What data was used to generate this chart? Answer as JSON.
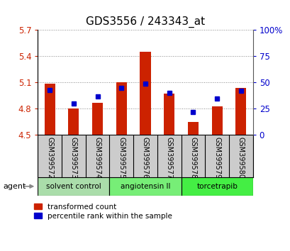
{
  "title": "GDS3556 / 243343_at",
  "samples": [
    "GSM399572",
    "GSM399573",
    "GSM399574",
    "GSM399575",
    "GSM399576",
    "GSM399577",
    "GSM399578",
    "GSM399579",
    "GSM399580"
  ],
  "red_values": [
    5.09,
    4.8,
    4.87,
    5.1,
    5.45,
    4.97,
    4.65,
    4.83,
    5.04
  ],
  "blue_values_pct": [
    43,
    30,
    37,
    45,
    49,
    40,
    22,
    35,
    42
  ],
  "y_min": 4.5,
  "y_max": 5.7,
  "y_ticks_red": [
    4.5,
    4.8,
    5.1,
    5.4,
    5.7
  ],
  "y_ticks_blue": [
    0,
    25,
    50,
    75,
    100
  ],
  "bar_color": "#cc2200",
  "dot_color": "#0000cc",
  "groups": [
    {
      "label": "solvent control",
      "indices": [
        0,
        1,
        2
      ],
      "color": "#aaddaa"
    },
    {
      "label": "angiotensin II",
      "indices": [
        3,
        4,
        5
      ],
      "color": "#77ee77"
    },
    {
      "label": "torcetrapib",
      "indices": [
        6,
        7,
        8
      ],
      "color": "#44ee44"
    }
  ],
  "legend_red": "transformed count",
  "legend_blue": "percentile rank within the sample",
  "agent_label": "agent",
  "background_plot": "#ffffff",
  "grid_color": "#888888",
  "tick_label_color_left": "#cc2200",
  "tick_label_color_right": "#0000cc",
  "title_fontsize": 11,
  "axis_fontsize": 8,
  "sample_label_color": "#000000",
  "xticklabel_bg": "#cccccc"
}
